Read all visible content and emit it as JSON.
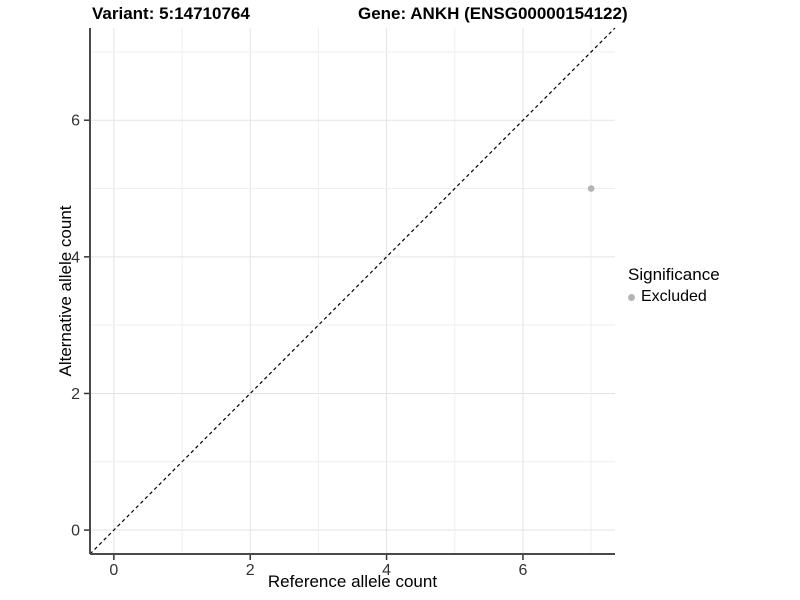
{
  "title": {
    "variant": "Variant: 5:14710764",
    "gene": "Gene: ANKH (ENSG00000154122)"
  },
  "chart_data": {
    "type": "scatter",
    "title_left": "Variant: 5:14710764",
    "title_right": "Gene: ANKH (ENSG00000154122)",
    "xlabel": "Reference allele count",
    "ylabel": "Alternative allele count",
    "xlim": [
      -0.35,
      7.35
    ],
    "ylim": [
      -0.35,
      7.35
    ],
    "x_ticks": [
      0,
      2,
      4,
      6
    ],
    "y_ticks": [
      0,
      2,
      4,
      6
    ],
    "grid_values": [
      0,
      1,
      2,
      3,
      4,
      5,
      6,
      7
    ],
    "grid_on": true,
    "points": [
      {
        "x": 7,
        "y": 5,
        "significance": "Excluded"
      }
    ],
    "identity_line": {
      "type": "dashed",
      "slope": 1,
      "intercept": 0
    },
    "legend": {
      "position": "right",
      "title": "Significance",
      "items": [
        {
          "label": "Excluded",
          "color": "#b4b4b4"
        }
      ]
    },
    "colors": {
      "point_excluded": "#b4b4b4",
      "grid_major": "#e3e3e3",
      "grid_minor": "#efefef",
      "axis_line": "#4a4a4a",
      "tick_mark": "#333333",
      "tick_label": "#333333",
      "identity_line": "#000000",
      "background": "#ffffff"
    }
  }
}
